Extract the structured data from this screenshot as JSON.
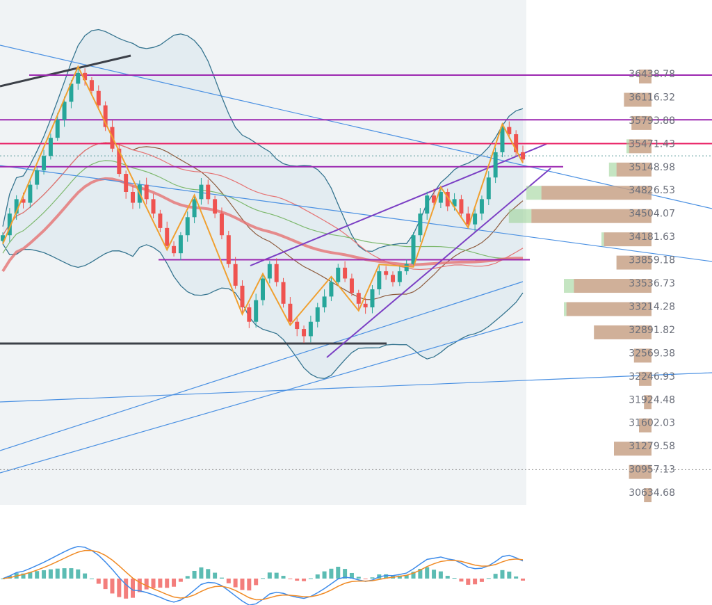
{
  "chart_data": {
    "type": "candlestick",
    "price_axis": {
      "ticks": [
        36438.78,
        36116.32,
        35793.88,
        35471.43,
        35148.98,
        34826.53,
        34504.07,
        34181.63,
        33859.18,
        33536.73,
        33214.28,
        32891.82,
        32569.38,
        32246.93,
        31924.48,
        31602.03,
        31279.58,
        30957.13,
        30634.68
      ],
      "ylim": [
        30300,
        36850
      ]
    },
    "horizontal_levels": [
      {
        "price": 36420,
        "color": "#9c27b0"
      },
      {
        "price": 35800,
        "color": "#9c27b0"
      },
      {
        "price": 35470,
        "color": "#e91e63"
      },
      {
        "price": 35150,
        "color": "#9c27b0"
      },
      {
        "price": 33860,
        "color": "#9c27b0"
      }
    ],
    "dotted_levels": [
      {
        "price": 35300,
        "color": "#5e9d9d"
      },
      {
        "price": 30950,
        "color": "#888888"
      }
    ],
    "volume_profile": [
      {
        "price": 36438.78,
        "up": 0,
        "down": 5
      },
      {
        "price": 36116.32,
        "up": 0,
        "down": 11
      },
      {
        "price": 35793.88,
        "up": 0,
        "down": 8
      },
      {
        "price": 35471.43,
        "up": 1,
        "down": 9
      },
      {
        "price": 35148.98,
        "up": 3,
        "down": 14
      },
      {
        "price": 34826.53,
        "up": 6,
        "down": 44
      },
      {
        "price": 34504.07,
        "up": 9,
        "down": 48
      },
      {
        "price": 34181.63,
        "up": 1,
        "down": 19
      },
      {
        "price": 33859.18,
        "up": 0,
        "down": 14
      },
      {
        "price": 33536.73,
        "up": 4,
        "down": 31
      },
      {
        "price": 33214.28,
        "up": 1,
        "down": 34
      },
      {
        "price": 32891.82,
        "up": 0,
        "down": 23
      },
      {
        "price": 32569.38,
        "up": 0,
        "down": 7
      },
      {
        "price": 32246.93,
        "up": 0,
        "down": 5
      },
      {
        "price": 31924.48,
        "up": 0,
        "down": 3
      },
      {
        "price": 31602.03,
        "up": 0,
        "down": 5
      },
      {
        "price": 31279.58,
        "up": 0,
        "down": 15
      },
      {
        "price": 30957.13,
        "up": 0,
        "down": 9
      },
      {
        "price": 30634.68,
        "up": 0,
        "down": 3
      }
    ],
    "closes": [
      34200,
      34500,
      34700,
      34650,
      34900,
      35100,
      35300,
      35550,
      35800,
      36050,
      36300,
      36450,
      36350,
      36200,
      36000,
      35700,
      35400,
      35050,
      34800,
      34650,
      34900,
      34700,
      34500,
      34300,
      34050,
      33950,
      34200,
      34450,
      34700,
      34900,
      34700,
      34500,
      34200,
      33800,
      33500,
      33200,
      33000,
      33300,
      33600,
      33800,
      33550,
      33250,
      33000,
      32900,
      32800,
      33000,
      33200,
      33350,
      33550,
      33750,
      33600,
      33400,
      33250,
      33200,
      33450,
      33700,
      33650,
      33550,
      33700,
      33800,
      34200,
      34500,
      34750,
      34650,
      34800,
      34600,
      34700,
      34500,
      34350,
      34500,
      34700,
      35000,
      35350,
      35700,
      35600,
      35350,
      35250
    ],
    "colors": {
      "up": "#26a69a",
      "down": "#ef5350",
      "plot_bg": "#f0f3f5"
    }
  }
}
